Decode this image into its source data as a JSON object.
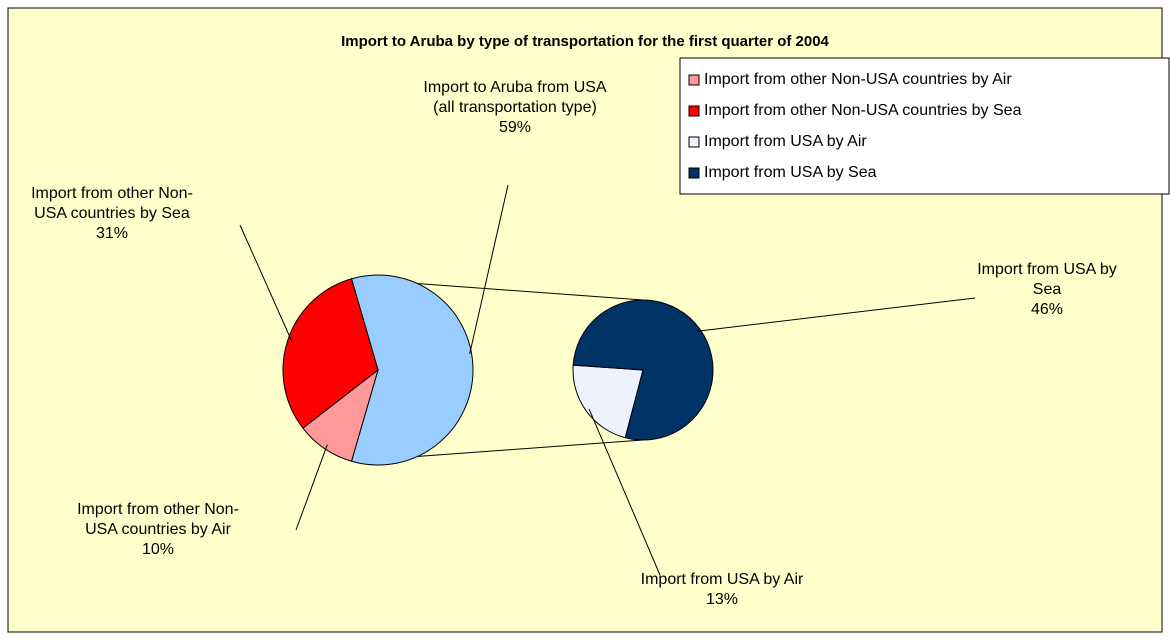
{
  "chart_data": {
    "type": "pie-of-pie",
    "title": "Import to Aruba by type of transportation for the first quarter of 2004",
    "categories": [
      "Import from other Non-USA countries by Air",
      "Import from other Non-USA countries by Sea",
      "Import from USA by Air",
      "Import from USA by Sea"
    ],
    "values": [
      10,
      31,
      13,
      46
    ],
    "value_labels": [
      "10%",
      "31%",
      "13%",
      "46%"
    ],
    "colors": [
      "#ff9999",
      "#ff0000",
      "#eef2ff",
      "#003366"
    ],
    "second_pie": [
      2,
      3
    ],
    "combined": {
      "label": "Import to Aruba from USA (all transportation type)",
      "value": 59,
      "value_label": "59%",
      "color": "#99ccff"
    },
    "legend": "top-right"
  }
}
